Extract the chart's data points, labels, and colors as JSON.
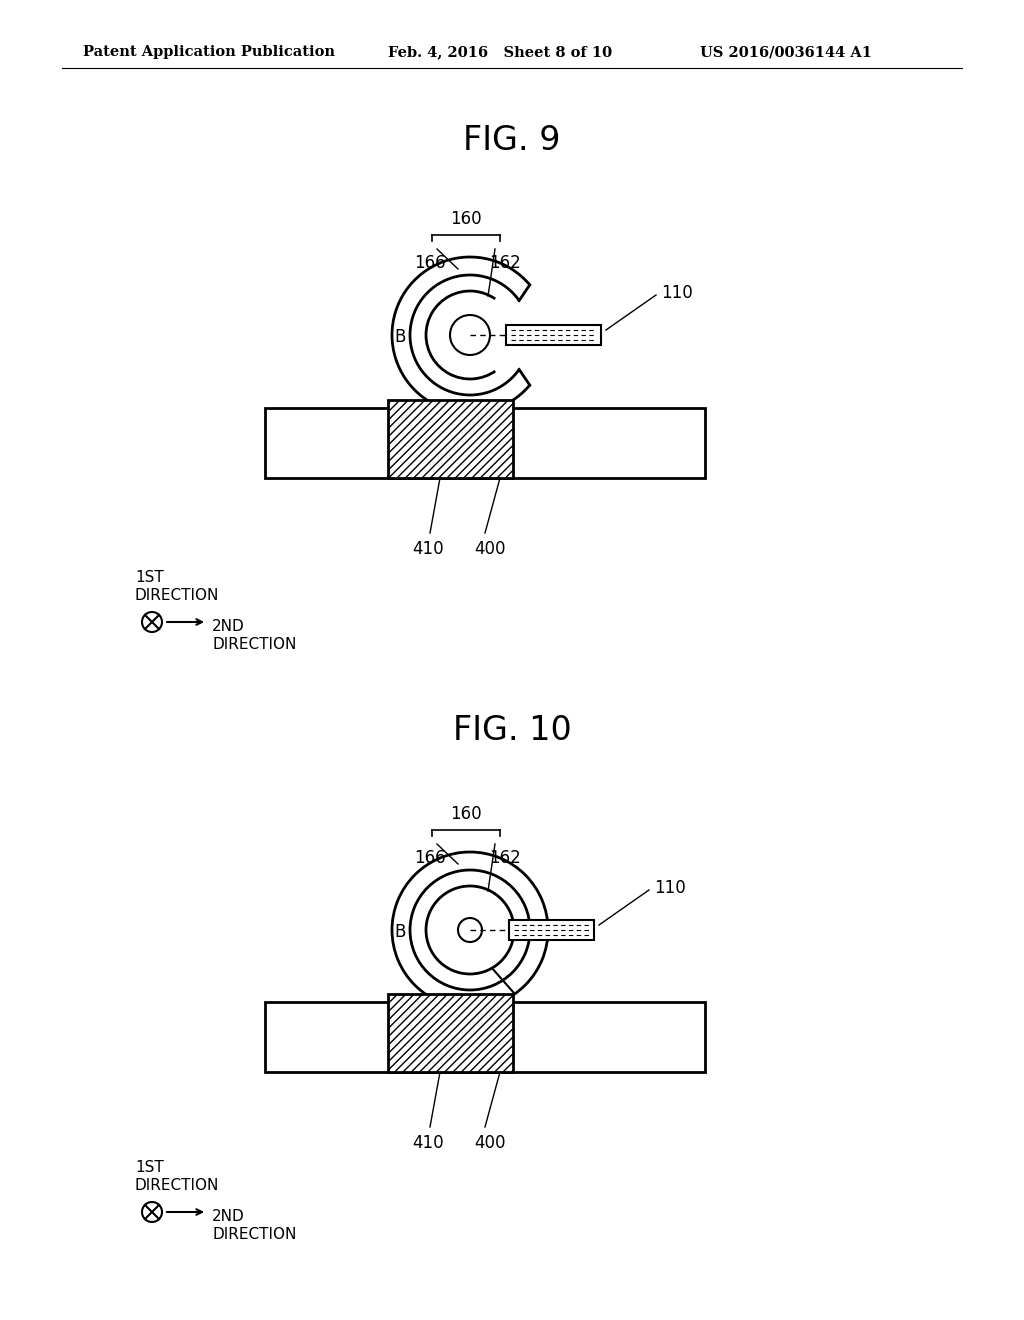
{
  "bg_color": "#ffffff",
  "header_left": "Patent Application Publication",
  "header_mid": "Feb. 4, 2016   Sheet 8 of 10",
  "header_right": "US 2016/0036144 A1",
  "fig9_title": "FIG. 9",
  "fig10_title": "FIG. 10",
  "label_160": "160",
  "label_166": "166",
  "label_162": "162",
  "label_110": "110",
  "label_B": "B",
  "label_410": "410",
  "label_400": "400"
}
